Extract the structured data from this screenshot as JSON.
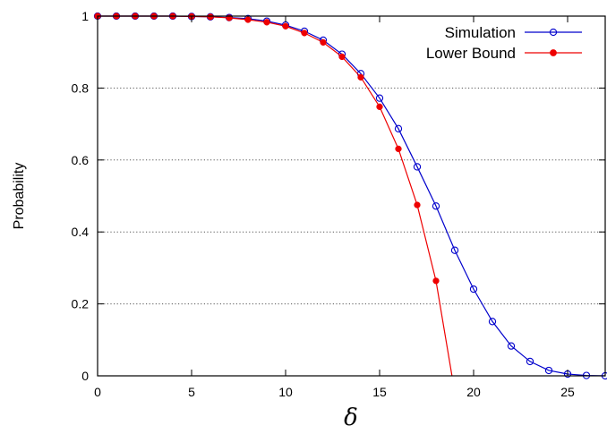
{
  "chart_data": {
    "type": "line",
    "xlabel": "δ",
    "ylabel": "Probability",
    "xlim": [
      0,
      27
    ],
    "ylim": [
      0,
      1
    ],
    "xticks": [
      "0",
      "5",
      "10",
      "15",
      "20",
      "25"
    ],
    "yticks": [
      "0",
      "0.2",
      "0.4",
      "0.6",
      "0.8",
      "1"
    ],
    "grid": "horizontal dotted",
    "legend_position": "top-right",
    "series": [
      {
        "name": "Simulation",
        "color": "#0000cc",
        "marker": "open-circle",
        "x": [
          0,
          1,
          2,
          3,
          4,
          5,
          6,
          7,
          8,
          9,
          10,
          11,
          12,
          13,
          14,
          15,
          16,
          17,
          18,
          19,
          20,
          21,
          22,
          23,
          24,
          25,
          26,
          27
        ],
        "y": [
          1.0,
          1.0,
          1.0,
          1.0,
          1.0,
          0.999,
          0.998,
          0.996,
          0.993,
          0.986,
          0.975,
          0.958,
          0.933,
          0.894,
          0.84,
          0.772,
          0.687,
          0.581,
          0.472,
          0.349,
          0.241,
          0.151,
          0.083,
          0.04,
          0.015,
          0.005,
          0.001,
          0.0
        ]
      },
      {
        "name": "Lower Bound",
        "color": "#ee0000",
        "marker": "filled-circle",
        "x": [
          0,
          1,
          2,
          3,
          4,
          5,
          6,
          7,
          8,
          9,
          10,
          11,
          12,
          13,
          14,
          15,
          16,
          17,
          18,
          18.85
        ],
        "y": [
          1.0,
          1.0,
          1.0,
          1.0,
          1.0,
          0.999,
          0.998,
          0.995,
          0.99,
          0.983,
          0.972,
          0.953,
          0.927,
          0.887,
          0.83,
          0.748,
          0.631,
          0.475,
          0.264,
          0.0
        ]
      }
    ]
  }
}
